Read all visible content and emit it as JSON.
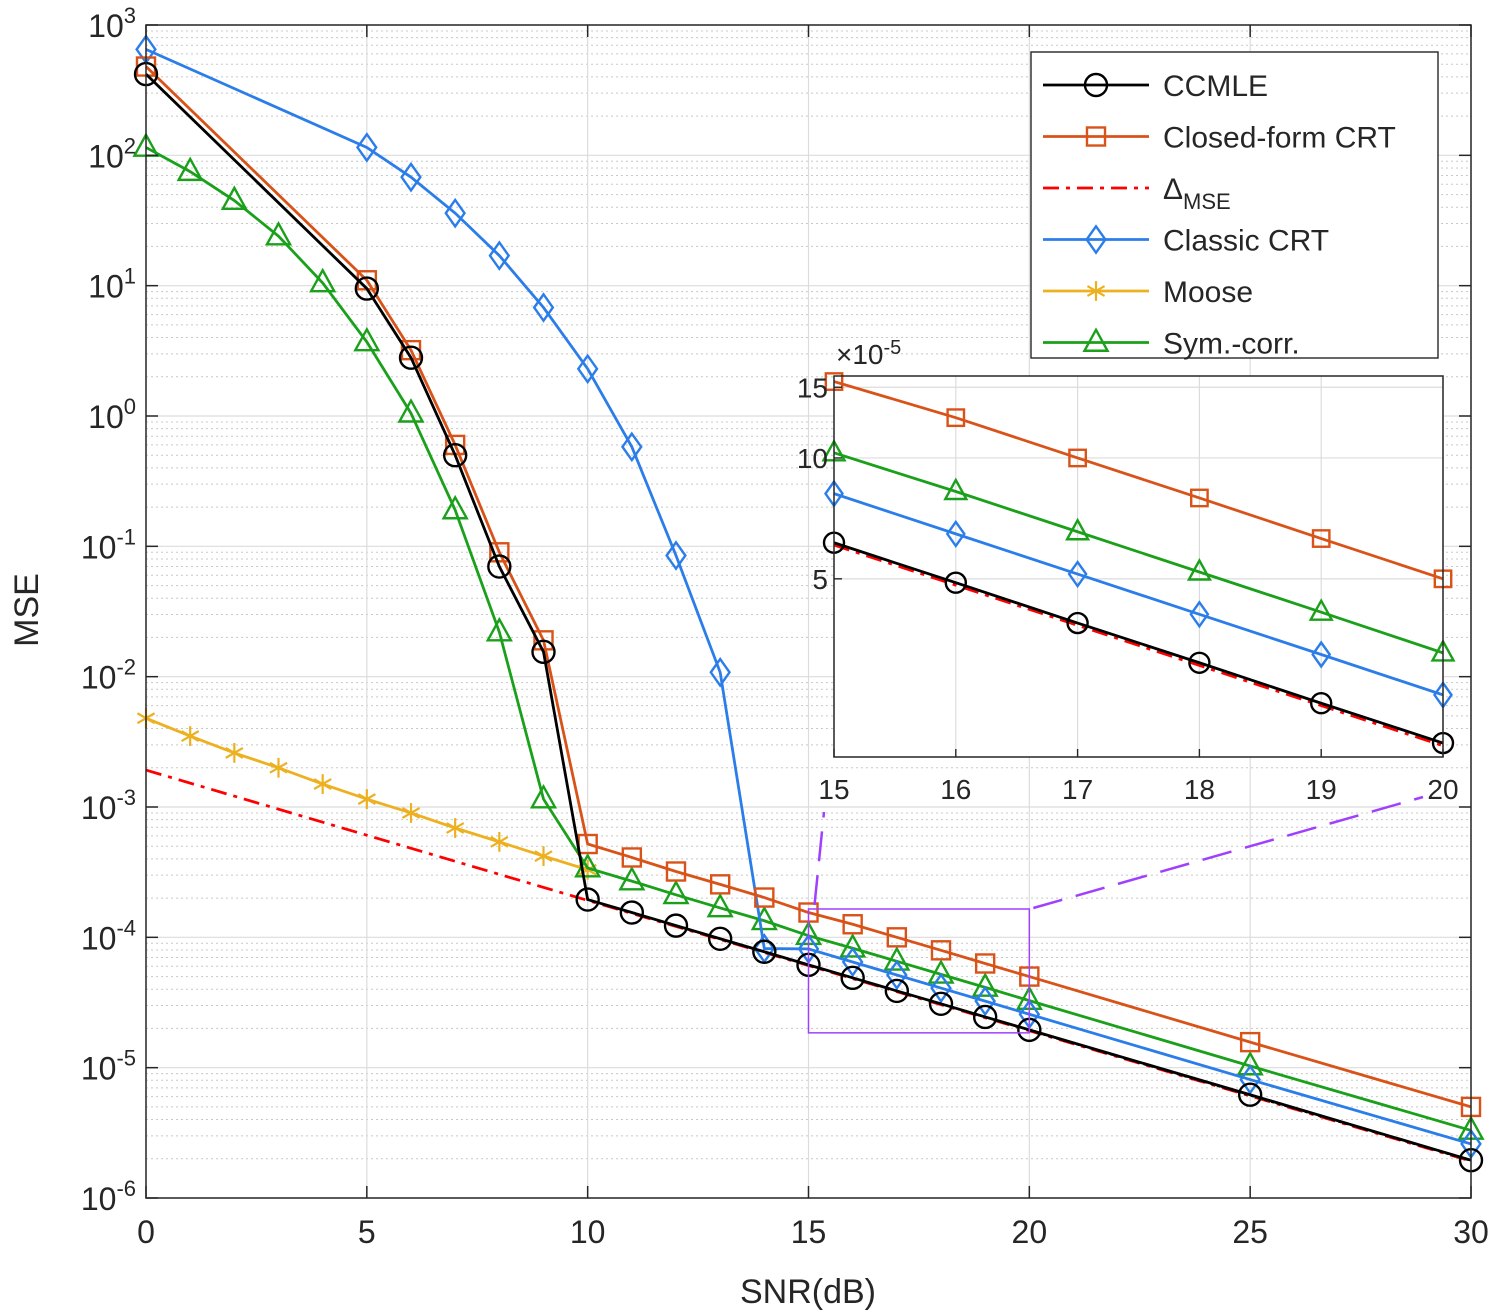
{
  "chart_data": {
    "type": "line",
    "title": "",
    "xlabel": "SNR(dB)",
    "ylabel": "MSE",
    "xlim": [
      0,
      30
    ],
    "ylim": [
      1e-06,
      1000
    ],
    "yscale": "log",
    "grid": true,
    "minor_grid": true,
    "legend_position": "top-right",
    "x_ticks": [
      0,
      5,
      10,
      15,
      20,
      25,
      30
    ],
    "y_ticks": [
      {
        "base": "10",
        "exp": "3"
      },
      {
        "base": "10",
        "exp": "2"
      },
      {
        "base": "10",
        "exp": "1"
      },
      {
        "base": "10",
        "exp": "0"
      },
      {
        "base": "10",
        "exp": "-1"
      },
      {
        "base": "10",
        "exp": "-2"
      },
      {
        "base": "10",
        "exp": "-3"
      },
      {
        "base": "10",
        "exp": "-4"
      },
      {
        "base": "10",
        "exp": "-5"
      },
      {
        "base": "10",
        "exp": "-6"
      }
    ],
    "series": [
      {
        "name": "CCMLE",
        "color": "#000000",
        "marker": "circle",
        "dash": "solid",
        "x": [
          0,
          5,
          6,
          7,
          8,
          9,
          10,
          11,
          12,
          13,
          14,
          15,
          16,
          17,
          18,
          19,
          20,
          25,
          30
        ],
        "y": [
          420,
          9.5,
          2.8,
          0.5,
          0.07,
          0.0155,
          0.000195,
          0.000155,
          0.000123,
          9.75e-05,
          7.75e-05,
          6.15e-05,
          4.89e-05,
          3.88e-05,
          3.09e-05,
          2.45e-05,
          1.95e-05,
          6.2e-06,
          1.95e-06
        ]
      },
      {
        "name": "Closed-form CRT",
        "color": "#d95319",
        "marker": "square",
        "dash": "solid",
        "x": [
          0,
          5,
          6,
          7,
          8,
          9,
          10,
          11,
          12,
          13,
          14,
          15,
          16,
          17,
          18,
          19,
          20,
          25,
          30
        ],
        "y": [
          480,
          11,
          3.2,
          0.6,
          0.09,
          0.019,
          0.00052,
          0.00041,
          0.00032,
          0.000255,
          0.000202,
          0.000155,
          0.000126,
          0.0001,
          7.95e-05,
          6.3e-05,
          5e-05,
          1.57e-05,
          5e-06
        ]
      },
      {
        "name": "Δ",
        "name_sub": "MSE",
        "color": "#ff0000",
        "marker": "none",
        "dash": "dashdot",
        "x": [
          0,
          30
        ],
        "y": [
          0.00192,
          1.92e-06
        ]
      },
      {
        "name": "Classic CRT",
        "color": "#2b7de9",
        "marker": "diamond",
        "dash": "solid",
        "x": [
          0,
          5,
          6,
          7,
          8,
          9,
          10,
          11,
          12,
          13,
          14,
          15,
          16,
          17,
          18,
          19,
          20,
          25,
          30
        ],
        "y": [
          650,
          115,
          68,
          36,
          17,
          6.8,
          2.3,
          0.58,
          0.085,
          0.0108,
          8.2e-05,
          8.15e-05,
          6.47e-05,
          5.14e-05,
          4.08e-05,
          3.24e-05,
          2.57e-05,
          8.1e-06,
          2.6e-06
        ]
      },
      {
        "name": "Moose",
        "color": "#edb120",
        "marker": "star",
        "dash": "solid",
        "x": [
          0,
          1,
          2,
          3,
          4,
          5,
          6,
          7,
          8,
          9,
          10
        ],
        "y": [
          0.0048,
          0.0035,
          0.0026,
          0.002,
          0.0015,
          0.00115,
          0.0009,
          0.00069,
          0.00054,
          0.00042,
          0.00033
        ]
      },
      {
        "name": "Sym.-corr.",
        "color": "#1aa01a",
        "marker": "triangle",
        "dash": "solid",
        "x": [
          0,
          1,
          2,
          3,
          4,
          5,
          6,
          7,
          8,
          9,
          10,
          11,
          12,
          13,
          14,
          15,
          16,
          17,
          18,
          19,
          20,
          25,
          30
        ],
        "y": [
          115,
          75,
          45,
          24,
          10.5,
          3.7,
          1.05,
          0.19,
          0.022,
          0.00115,
          0.00034,
          0.00027,
          0.000212,
          0.000168,
          0.000134,
          0.000103,
          8.25e-05,
          6.55e-05,
          5.2e-05,
          4.13e-05,
          3.27e-05,
          1.03e-05,
          3.3e-06
        ]
      }
    ],
    "inset": {
      "xlim": [
        15,
        20
      ],
      "ylim": [
        1.8e-05,
        0.00016
      ],
      "scale_label": {
        "base": "×10",
        "exp": "-5"
      },
      "x_ticks": [
        15,
        16,
        17,
        18,
        19,
        20
      ],
      "y_ticks": [
        {
          "value": 5e-05,
          "label": "5"
        },
        {
          "value": 0.0001,
          "label": "10"
        },
        {
          "value": 0.00015,
          "label": "15"
        }
      ],
      "zoom_region": {
        "x": [
          15,
          20
        ],
        "y": [
          1.85e-05,
          0.000165
        ]
      },
      "zoom_color": "#a040ff"
    }
  }
}
